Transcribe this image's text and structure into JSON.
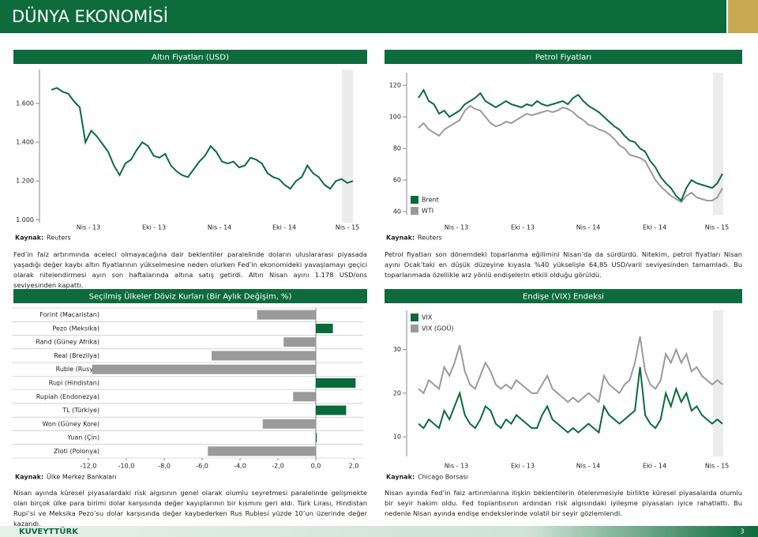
{
  "header": {
    "title": "DÜNYA EKONOMİSİ"
  },
  "footer": {
    "brand": "KUVEYTTÜRK",
    "page": "3"
  },
  "chart_data": [
    {
      "type": "line",
      "title": "Altın Fiyatları (USD)",
      "source_label": "Kaynak:",
      "source": "Reuters",
      "description": "Fed’in faiz artırımında aceleci olmayacağına dair beklentiler paralelinde doların uluslararası piyasada yaşadığı değer kaybı altın fiyatlarının yükselmesine neden olurken Fed’in ekonomideki yavaşlamayı geçici olarak nitelendirmesi ayın son haftalarında altına satış getirdi. Altın Nisan ayını 1.178 USD/ons seviyesinden kapattı.",
      "x_labels": [
        "Nis - 13",
        "Eki - 13",
        "Nis - 14",
        "Eki - 14",
        "Nis - 15"
      ],
      "color": "#0a6b3a",
      "values": [
        1670,
        1680,
        1660,
        1650,
        1610,
        1580,
        1400,
        1460,
        1430,
        1390,
        1350,
        1280,
        1230,
        1290,
        1310,
        1360,
        1400,
        1380,
        1330,
        1320,
        1340,
        1280,
        1250,
        1230,
        1220,
        1260,
        1300,
        1330,
        1380,
        1350,
        1300,
        1290,
        1300,
        1270,
        1280,
        1320,
        1310,
        1290,
        1240,
        1220,
        1210,
        1180,
        1160,
        1200,
        1220,
        1280,
        1240,
        1220,
        1180,
        1160,
        1200,
        1210,
        1190,
        1200
      ],
      "ylim": [
        985,
        1775
      ],
      "yticks": [
        {
          "value": 1000,
          "label": "1.000"
        },
        {
          "value": 1200,
          "label": "1.200"
        },
        {
          "value": 1400,
          "label": "1.400"
        },
        {
          "value": 1600,
          "label": "1.600"
        }
      ]
    },
    {
      "type": "line",
      "title": "Petrol Fiyatları",
      "source_label": "Kaynak:",
      "source": "Reuters",
      "description": "Petrol fiyatları son dönemdeki toparlanma eğilimini Nisan’da da sürdürdü. Nitekim, petrol fiyatları Nisan ayını Ocak’taki en düşük düzeyine kıyasla %40 yükselişle 64,85 USD/varil seviyesinden tamamladı. Bu toparlanmada özellikle arz yönlü endişelerin etkili olduğu görüldü.",
      "x_labels": [
        "Nis - 13",
        "Eki - 13",
        "Nis - 14",
        "Eki - 14",
        "Nis - 15"
      ],
      "series": [
        {
          "name": "Brent",
          "color": "#0a6b3a",
          "values": [
            112,
            117,
            110,
            108,
            102,
            104,
            100,
            102,
            104,
            108,
            110,
            112,
            115,
            110,
            108,
            106,
            108,
            110,
            108,
            107,
            106,
            108,
            107,
            110,
            108,
            107,
            108,
            109,
            110,
            108,
            112,
            114,
            110,
            107,
            105,
            103,
            100,
            97,
            94,
            92,
            88,
            85,
            84,
            80,
            78,
            72,
            68,
            62,
            58,
            55,
            50,
            47,
            55,
            60,
            58,
            57,
            56,
            55,
            58,
            64
          ]
        },
        {
          "name": "WTI",
          "color": "#9a9a9a",
          "values": [
            93,
            96,
            92,
            90,
            88,
            92,
            94,
            96,
            98,
            104,
            107,
            105,
            104,
            100,
            96,
            94,
            95,
            97,
            96,
            98,
            100,
            102,
            101,
            102,
            103,
            104,
            103,
            104,
            106,
            105,
            103,
            100,
            98,
            95,
            94,
            92,
            91,
            89,
            86,
            82,
            80,
            76,
            75,
            74,
            72,
            66,
            60,
            56,
            53,
            50,
            48,
            46,
            50,
            52,
            49,
            48,
            47,
            47,
            49,
            55
          ]
        }
      ],
      "ylim": [
        38,
        128
      ],
      "yticks": [
        40,
        60,
        80,
        100,
        120
      ]
    },
    {
      "type": "hbar",
      "title": "Seçilmiş Ülkeler Döviz Kurları (Bir Aylık Değişim, %)",
      "source_label": "Kaynak:",
      "source": "Ülke Merkez Bankaları",
      "description": "Nisan ayında küresel piyasalardaki risk algısının genel olarak olumlu seyretmesi paralelinde gelişmekte olan birçok ülke para birimi dolar karşısında değer kayıplarının bir kısmını geri aldı. Türk Lirası, Hindistan Rupi’si ve Meksika Pezo’su dolar karşısında değer kaybederken Rus Rublesi yüzde 10’un üzerinde değer kazandı.",
      "categories": [
        "Forint (Macaristan)",
        "Pezo (Meksika)",
        "Rand (Güney Afrika)",
        "Real (Brezilya)",
        "Ruble (Rusya)",
        "Rupi (Hindistan)",
        "Rupiah (Endonezya)",
        "TL (Türkiye)",
        "Won (Güney Kore)",
        "Yuan (Çin)",
        "Zloti (Polonya)"
      ],
      "values": [
        -3.1,
        0.9,
        -1.7,
        -5.5,
        -11.8,
        2.1,
        -1.2,
        1.6,
        -2.8,
        0.05,
        -5.7
      ],
      "positive_color": "#0a6b3a",
      "negative_color": "#9a9a9a",
      "xlim": [
        -12.5,
        2.5
      ],
      "xticks": [
        {
          "value": -12,
          "label": "-12,0"
        },
        {
          "value": -10,
          "label": "-10,0"
        },
        {
          "value": -8,
          "label": "-8,0"
        },
        {
          "value": -6,
          "label": "-6,0"
        },
        {
          "value": -4,
          "label": "-4,0"
        },
        {
          "value": -2,
          "label": "-2,0"
        },
        {
          "value": 0,
          "label": "0,0"
        },
        {
          "value": 2,
          "label": "2,0"
        }
      ]
    },
    {
      "type": "line",
      "title": "Endişe (VIX) Endeksi",
      "source_label": "Kaynak:",
      "source": "Chicago Borsası",
      "description": "Nisan ayında Fed’in faiz artırımlarına ilişkin beklentilerin ötelenmesiyle birlikte küresel piyasalarda olumlu bir seyir hakim oldu. Fed toplantısının ardından risk algısındaki iyileşme piyasaları iyice rahatlattı. Bu nedenle Nisan ayında endişe endekslerinde volatil bir seyir gözlemlendi.",
      "x_labels": [
        "Nis - 13",
        "Eki - 13",
        "Nis - 14",
        "Eki - 14",
        "Nis - 15"
      ],
      "series": [
        {
          "name": "VIX",
          "color": "#0a6b3a",
          "values": [
            13,
            12,
            14,
            13,
            12,
            16,
            14,
            17,
            20,
            15,
            13,
            12,
            14,
            17,
            16,
            13,
            12,
            14,
            13,
            15,
            14,
            13,
            12,
            12,
            15,
            17,
            14,
            13,
            12,
            11,
            12,
            11,
            12,
            13,
            12,
            11,
            17,
            15,
            14,
            13,
            14,
            15,
            16,
            26,
            15,
            13,
            12,
            14,
            20,
            17,
            21,
            18,
            20,
            16,
            17,
            15,
            14,
            13,
            14,
            13
          ]
        },
        {
          "name": "VIX (GOÜ)",
          "color": "#9a9a9a",
          "values": [
            21,
            20,
            23,
            22,
            21,
            26,
            24,
            27,
            31,
            25,
            22,
            21,
            24,
            27,
            25,
            22,
            21,
            22,
            21,
            23,
            22,
            21,
            20,
            20,
            22,
            24,
            21,
            20,
            19,
            18,
            19,
            18,
            19,
            20,
            19,
            18,
            24,
            22,
            21,
            20,
            22,
            23,
            27,
            33,
            25,
            22,
            21,
            23,
            29,
            27,
            30,
            27,
            29,
            25,
            26,
            24,
            23,
            22,
            23,
            22
          ]
        }
      ],
      "ylim": [
        5.5,
        39
      ],
      "yticks": [
        10,
        20,
        30
      ]
    }
  ]
}
